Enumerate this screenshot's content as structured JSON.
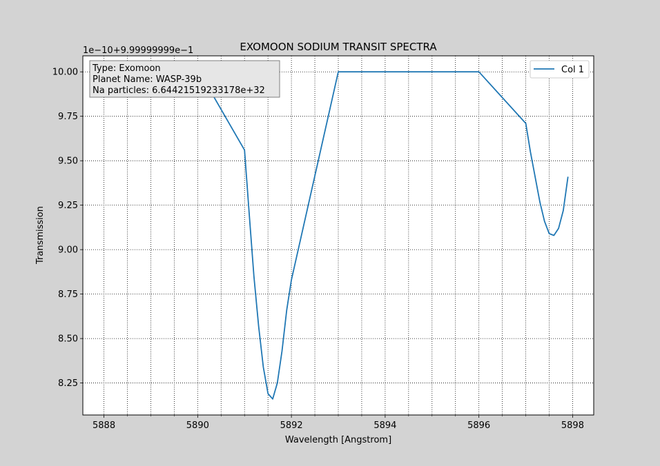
{
  "chart_data": {
    "type": "line",
    "title": "EXOMOON SODIUM TRANSIT SPECTRA",
    "xlabel": "Wavelength [Angstrom]",
    "ylabel": "Transmission",
    "offset_text": "1e−10+9.99999999e−1",
    "xlim": [
      5887.55,
      5898.45
    ],
    "ylim": [
      8.07,
      10.09
    ],
    "y_unit_note": "values shown as tick labels; actual = 0.999999999 + value*1e-10",
    "x_ticks": [
      5888,
      5890,
      5892,
      5894,
      5896,
      5898
    ],
    "x_tick_labels": [
      "5888",
      "5890",
      "5892",
      "5894",
      "5896",
      "5898"
    ],
    "x_minor_ticks": [
      5888.5,
      5889,
      5889.5,
      5890.5,
      5891,
      5891.5,
      5892.5,
      5893,
      5893.5,
      5894.5,
      5895,
      5895.5,
      5896.5,
      5897,
      5897.5
    ],
    "y_ticks": [
      8.25,
      8.5,
      8.75,
      9.0,
      9.25,
      9.5,
      9.75,
      10.0
    ],
    "y_tick_labels": [
      "8.25",
      "8.50",
      "8.75",
      "9.00",
      "9.25",
      "9.50",
      "9.75",
      "10.00"
    ],
    "grid": true,
    "legend": {
      "position": "top-right",
      "label": "Col 1"
    },
    "color": "#1f77b4",
    "annotation": {
      "lines": [
        "Type: Exomoon",
        "Planet Name: WASP-39b",
        "Na particles: 6.64421519233178e+32"
      ],
      "position": "top-left"
    },
    "series": [
      {
        "name": "Col 1",
        "x": [
          5890.0,
          5890.3,
          5891.0,
          5891.1,
          5891.2,
          5891.3,
          5891.4,
          5891.5,
          5891.6,
          5891.7,
          5891.8,
          5891.9,
          5892.0,
          5893.0,
          5894.0,
          5895.0,
          5896.0,
          5897.0,
          5897.1,
          5897.2,
          5897.3,
          5897.4,
          5897.5,
          5897.6,
          5897.7,
          5897.8,
          5897.9
        ],
        "y": [
          10.0,
          9.88,
          9.56,
          9.2,
          8.85,
          8.57,
          8.34,
          8.19,
          8.16,
          8.25,
          8.43,
          8.66,
          8.83,
          10.0,
          10.0,
          10.0,
          10.0,
          9.71,
          9.55,
          9.41,
          9.27,
          9.16,
          9.09,
          9.08,
          9.12,
          9.22,
          9.41
        ]
      }
    ]
  }
}
